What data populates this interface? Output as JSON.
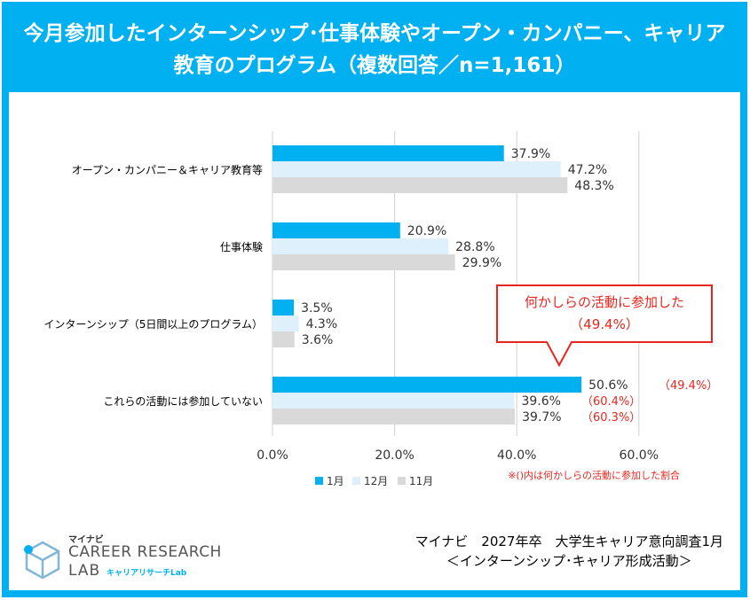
{
  "header": {
    "title_line1": "今月参加したインターンシップ･仕事体験やオープン・カンパニー、キャリア",
    "title_line2": "教育のプログラム（複数回答／n=1,161）"
  },
  "chart_data": {
    "type": "bar",
    "orientation": "horizontal",
    "categories": [
      "オープン・カンパニー＆キャリア教育等",
      "仕事体験",
      "インターンシップ（5日間以上のプログラム）",
      "これらの活動には参加していない"
    ],
    "series": [
      {
        "name": "1月",
        "values": [
          37.9,
          20.9,
          3.5,
          50.6
        ],
        "labels": [
          "37.9%",
          "20.9%",
          "3.5%",
          "50.6%"
        ]
      },
      {
        "name": "12月",
        "values": [
          47.2,
          28.8,
          4.3,
          39.6
        ],
        "labels": [
          "47.2%",
          "28.8%",
          "4.3%",
          "39.6%"
        ]
      },
      {
        "name": "11月",
        "values": [
          48.3,
          29.9,
          3.6,
          39.7
        ],
        "labels": [
          "48.3%",
          "29.9%",
          "3.6%",
          "39.7%"
        ]
      }
    ],
    "colors": {
      "1月": "#00b0f0",
      "12月": "#ddf0fb",
      "11月": "#d9d9d9"
    },
    "xlim": [
      0,
      60
    ],
    "xticks": [
      "0.0%",
      "20.0%",
      "40.0%",
      "60.0%"
    ],
    "xtick_values": [
      0,
      20,
      40,
      60
    ],
    "grid": true,
    "legend": "bottom",
    "participation_rates": [
      "（49.4%）",
      "（60.4%）",
      "（60.3%）"
    ],
    "callout": {
      "line1": "何かしらの活動に参加した",
      "line2": "（49.4%）"
    },
    "note": "※()内は何かしらの活動に参加した割合"
  },
  "footer": {
    "source_line1": "マイナビ　2027年卒　大学生キャリア意向調査1月",
    "source_line2": "＜インターンシップ･キャリア形成活動＞",
    "logo_brand": "マイナビ",
    "logo_line1": "CAREER RESEARCH",
    "logo_line2": "LAB",
    "logo_sub": "キャリアリサーチLab"
  }
}
